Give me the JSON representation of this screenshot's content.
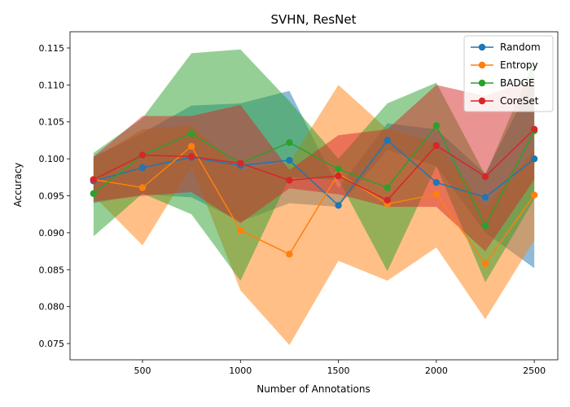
{
  "chart_data": {
    "type": "line",
    "title": "SVHN, ResNet",
    "xlabel": "Number of Annotations",
    "ylabel": "Accuracy",
    "xlim": [
      130,
      2620
    ],
    "ylim": [
      0.0728,
      0.1172
    ],
    "xticks": [
      500,
      1000,
      1500,
      2000,
      2500
    ],
    "xtick_labels": [
      "500",
      "1000",
      "1500",
      "2000",
      "2500"
    ],
    "yticks": [
      0.075,
      0.08,
      0.085,
      0.09,
      0.095,
      0.1,
      0.105,
      0.11,
      0.115
    ],
    "ytick_labels": [
      "0.075",
      "0.080",
      "0.085",
      "0.090",
      "0.095",
      "0.100",
      "0.105",
      "0.110",
      "0.115"
    ],
    "grid": false,
    "legend_position": "top-right",
    "x": [
      250,
      500,
      750,
      1000,
      1250,
      1500,
      1750,
      2000,
      2250,
      2500
    ],
    "series": [
      {
        "name": "Random",
        "color": "#1f77b4",
        "values": [
          0.097,
          0.0988,
          0.1002,
          0.0991,
          0.0998,
          0.0937,
          0.1025,
          0.0968,
          0.0948,
          0.1
        ],
        "lower": [
          0.094,
          0.0952,
          0.0948,
          0.0915,
          0.094,
          0.0935,
          0.1012,
          0.099,
          0.09,
          0.0852
        ],
        "upper": [
          0.1003,
          0.1035,
          0.1072,
          0.1075,
          0.1092,
          0.096,
          0.1048,
          0.104,
          0.098,
          0.111
        ]
      },
      {
        "name": "Entropy",
        "color": "#ff7f0e",
        "values": [
          0.0972,
          0.0961,
          0.1017,
          0.0903,
          0.0871,
          0.098,
          0.0939,
          0.0952,
          0.0858,
          0.0951
        ],
        "lower": [
          0.095,
          0.0883,
          0.099,
          0.0822,
          0.0748,
          0.0862,
          0.0835,
          0.088,
          0.0783,
          0.089
        ],
        "upper": [
          0.1,
          0.104,
          0.1045,
          0.0985,
          0.0995,
          0.11,
          0.104,
          0.1022,
          0.0935,
          0.1012
        ]
      },
      {
        "name": "BADGE",
        "color": "#2ca02c",
        "values": [
          0.0953,
          0.1005,
          0.1034,
          0.0994,
          0.1022,
          0.0986,
          0.0961,
          0.1045,
          0.0909,
          0.1038
        ],
        "lower": [
          0.0895,
          0.0953,
          0.0925,
          0.0835,
          0.0975,
          0.0972,
          0.0848,
          0.099,
          0.0833,
          0.0945
        ],
        "upper": [
          0.1008,
          0.1055,
          0.1143,
          0.1148,
          0.1078,
          0.1,
          0.1075,
          0.1103,
          0.0978,
          0.1133
        ]
      },
      {
        "name": "CoreSet",
        "color": "#d62728",
        "values": [
          0.0972,
          0.1005,
          0.1003,
          0.0994,
          0.0971,
          0.0977,
          0.0944,
          0.1018,
          0.0976,
          0.104
        ],
        "lower": [
          0.0942,
          0.095,
          0.0955,
          0.0913,
          0.096,
          0.0952,
          0.0935,
          0.0935,
          0.0875,
          0.0972
        ],
        "upper": [
          0.1003,
          0.1058,
          0.1058,
          0.1073,
          0.0985,
          0.1032,
          0.104,
          0.11,
          0.1085,
          0.111
        ]
      }
    ]
  }
}
